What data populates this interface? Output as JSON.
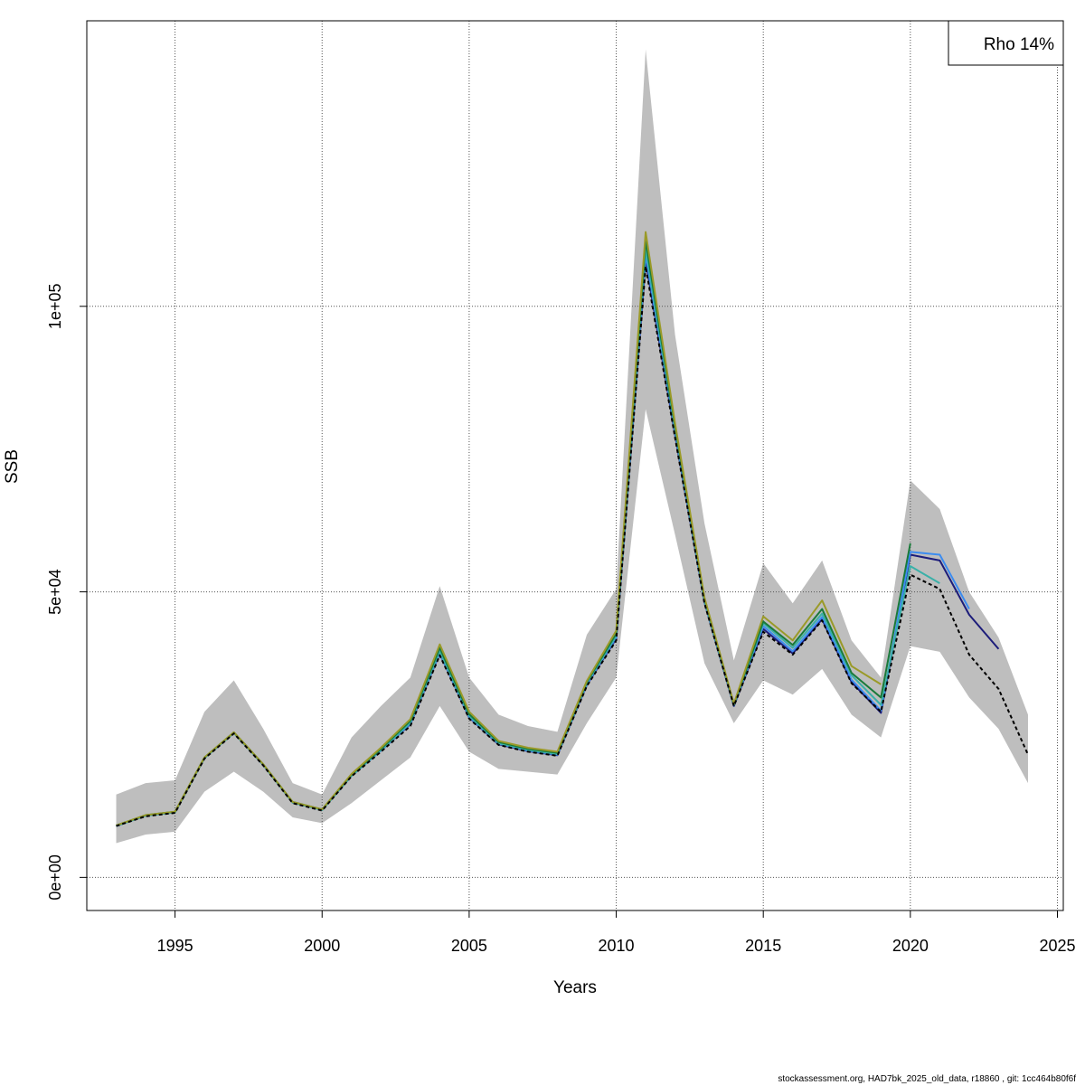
{
  "chart_data": {
    "type": "line",
    "title": "",
    "xlabel": "Years",
    "ylabel": "SSB",
    "xlim": [
      1992,
      2025.2
    ],
    "ylim": [
      -5800,
      150000
    ],
    "x_ticks": [
      1995,
      2000,
      2005,
      2010,
      2015,
      2020,
      2025
    ],
    "y_ticks": [
      0,
      50000,
      100000
    ],
    "y_tick_labels": [
      "0e+00",
      "5e+04",
      "1e+05"
    ],
    "grid": true,
    "legend": {
      "position": "top-right",
      "text": "Rho 14%"
    },
    "confidence_band": {
      "x": [
        1993,
        1994,
        1995,
        1996,
        1997,
        1998,
        1999,
        2000,
        2001,
        2002,
        2003,
        2004,
        2005,
        2006,
        2007,
        2008,
        2009,
        2010,
        2011,
        2012,
        2013,
        2014,
        2015,
        2016,
        2017,
        2018,
        2019,
        2020,
        2021,
        2022,
        2023,
        2024
      ],
      "lower": [
        6000,
        7500,
        8000,
        15000,
        18500,
        15000,
        10500,
        9500,
        13000,
        17000,
        21000,
        30000,
        22000,
        19000,
        18500,
        18000,
        27000,
        35000,
        82000,
        60000,
        37500,
        27000,
        34500,
        32000,
        36500,
        28500,
        24500,
        40500,
        39500,
        31500,
        26000,
        16500
      ],
      "upper": [
        14500,
        16500,
        17000,
        29000,
        34500,
        26000,
        16500,
        14500,
        24500,
        30000,
        35000,
        51000,
        35000,
        28500,
        26500,
        25500,
        42500,
        50500,
        145000,
        95000,
        62000,
        38000,
        55000,
        48000,
        55500,
        41500,
        35000,
        69500,
        64500,
        50000,
        42000,
        28500
      ],
      "color": "#bebebe"
    },
    "series": [
      {
        "color": "#000000",
        "dashed": true,
        "x": [
          1993,
          1994,
          1995,
          1996,
          1997,
          1998,
          1999,
          2000,
          2001,
          2002,
          2003,
          2004,
          2005,
          2006,
          2007,
          2008,
          2009,
          2010,
          2011,
          2012,
          2013,
          2014,
          2015,
          2016,
          2017,
          2018,
          2019,
          2020,
          2021,
          2022,
          2023,
          2024
        ],
        "y": [
          9000,
          10700,
          11300,
          20800,
          25200,
          19600,
          13000,
          11700,
          17700,
          22000,
          26500,
          38900,
          27800,
          23200,
          22000,
          21300,
          33500,
          41500,
          107000,
          77000,
          48000,
          30000,
          43000,
          39000,
          45000,
          34000,
          29000,
          53000,
          50500,
          39000,
          33000,
          21500
        ]
      },
      {
        "color": "#1c1c7a",
        "dashed": false,
        "x": [
          1993,
          1994,
          1995,
          1996,
          1997,
          1998,
          1999,
          2000,
          2001,
          2002,
          2003,
          2004,
          2005,
          2006,
          2007,
          2008,
          2009,
          2010,
          2011,
          2012,
          2013,
          2014,
          2015,
          2016,
          2017,
          2018,
          2019,
          2020,
          2021,
          2022,
          2023
        ],
        "y": [
          9000,
          10800,
          11400,
          20900,
          25300,
          19700,
          13100,
          11800,
          17800,
          22200,
          26800,
          39200,
          28000,
          23300,
          22100,
          21400,
          33700,
          41800,
          108000,
          77500,
          48200,
          30000,
          43500,
          39200,
          45200,
          34200,
          28800,
          56500,
          55500,
          46000,
          40000
        ]
      },
      {
        "color": "#3c8cf0",
        "dashed": false,
        "x": [
          1993,
          1994,
          1995,
          1996,
          1997,
          1998,
          1999,
          2000,
          2001,
          2002,
          2003,
          2004,
          2005,
          2006,
          2007,
          2008,
          2009,
          2010,
          2011,
          2012,
          2013,
          2014,
          2015,
          2016,
          2017,
          2018,
          2019,
          2020,
          2021,
          2022
        ],
        "y": [
          9000,
          10800,
          11400,
          20900,
          25300,
          19700,
          13100,
          11800,
          17800,
          22200,
          26900,
          39300,
          28100,
          23400,
          22200,
          21500,
          33800,
          42000,
          109000,
          78000,
          48300,
          30100,
          44000,
          39600,
          45600,
          34600,
          29200,
          57000,
          56500,
          47000
        ]
      },
      {
        "color": "#3ab0a8",
        "dashed": false,
        "x": [
          1993,
          1994,
          1995,
          1996,
          1997,
          1998,
          1999,
          2000,
          2001,
          2002,
          2003,
          2004,
          2005,
          2006,
          2007,
          2008,
          2009,
          2010,
          2011,
          2012,
          2013,
          2014,
          2015,
          2016,
          2017,
          2018,
          2019,
          2020,
          2021
        ],
        "y": [
          9000,
          10800,
          11400,
          20900,
          25300,
          19700,
          13100,
          11800,
          17800,
          22300,
          27100,
          39600,
          28300,
          23500,
          22300,
          21600,
          34000,
          42300,
          110000,
          78500,
          48500,
          30200,
          44500,
          40200,
          46200,
          35400,
          30200,
          54500,
          51500
        ]
      },
      {
        "color": "#1a7a3a",
        "dashed": false,
        "x": [
          1993,
          1994,
          1995,
          1996,
          1997,
          1998,
          1999,
          2000,
          2001,
          2002,
          2003,
          2004,
          2005,
          2006,
          2007,
          2008,
          2009,
          2010,
          2011,
          2012,
          2013,
          2014,
          2015,
          2016,
          2017,
          2018,
          2019,
          2020
        ],
        "y": [
          9100,
          10900,
          11500,
          21000,
          25400,
          19800,
          13200,
          11900,
          18000,
          22500,
          27400,
          40200,
          28600,
          23700,
          22500,
          21800,
          34200,
          42700,
          111500,
          79000,
          48800,
          30300,
          44800,
          40700,
          47000,
          35800,
          31500,
          58500
        ]
      },
      {
        "color": "#9a9a28",
        "dashed": false,
        "x": [
          1993,
          1994,
          1995,
          1996,
          1997,
          1998,
          1999,
          2000,
          2001,
          2002,
          2003,
          2004,
          2005,
          2006,
          2007,
          2008,
          2009,
          2010,
          2011,
          2012,
          2013,
          2014,
          2015,
          2016,
          2017,
          2018,
          2019
        ],
        "y": [
          9100,
          10900,
          11500,
          21000,
          25400,
          19800,
          13200,
          11900,
          18100,
          22700,
          27700,
          40800,
          29000,
          23900,
          22700,
          22000,
          34400,
          43200,
          113000,
          79500,
          49000,
          30400,
          45700,
          41500,
          48500,
          37000,
          33800
        ]
      }
    ]
  },
  "footer": "stockassessment.org, HAD7bk_2025_old_data, r18860 , git: 1cc464b80f6f"
}
